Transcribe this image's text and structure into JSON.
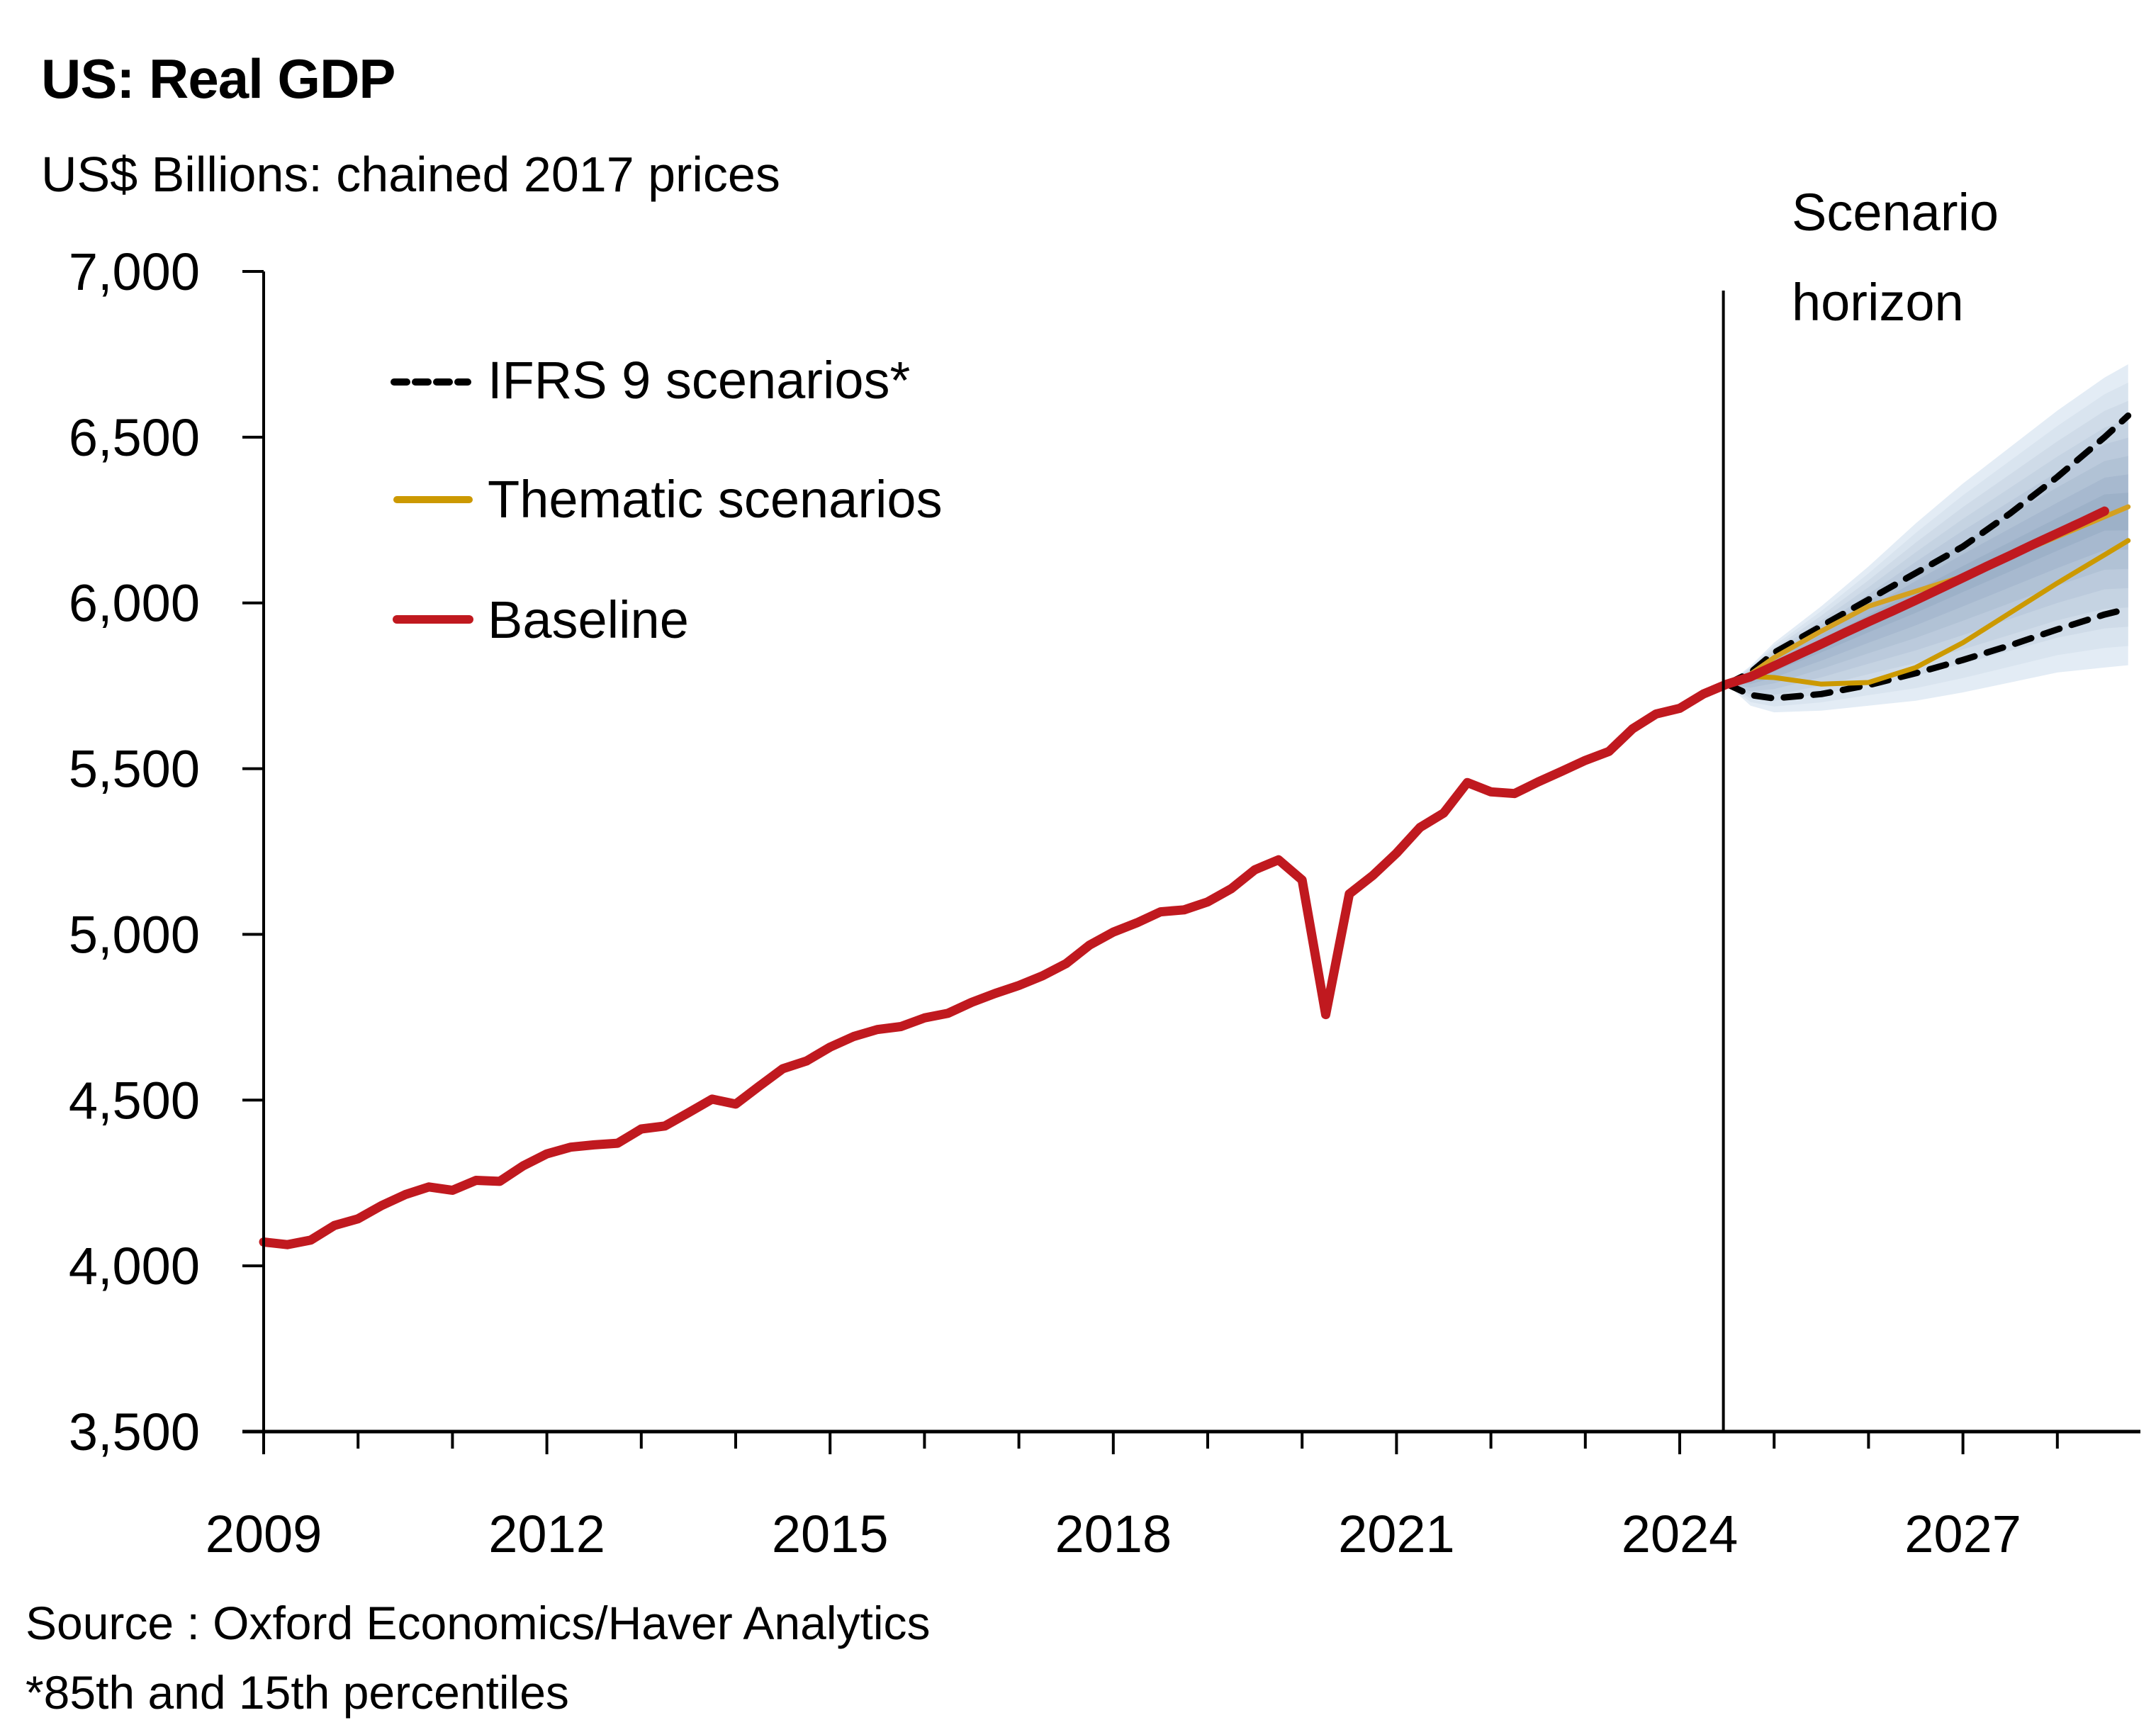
{
  "chart_data": {
    "type": "line",
    "title": "US: Real GDP",
    "subtitle": "US$ Billions: chained 2017 prices",
    "xlabel": "",
    "ylabel": "",
    "ylim": [
      3500,
      7000
    ],
    "xlim": [
      2009.0,
      2028.75
    ],
    "yticks": [
      3500,
      4000,
      4500,
      5000,
      5500,
      6000,
      6500,
      7000
    ],
    "ytick_labels": [
      "3,500",
      "4,000",
      "4,500",
      "5,000",
      "5,500",
      "6,000",
      "6,500",
      "7,000"
    ],
    "xticks_major": [
      2009,
      2012,
      2015,
      2018,
      2021,
      2024,
      2027
    ],
    "xtick_labels": [
      "2009",
      "2012",
      "2015",
      "2018",
      "2021",
      "2024",
      "2027"
    ],
    "xticks_minor_every_years": 1,
    "grid": false,
    "legend_position": "top-left",
    "legend": [
      {
        "label": "IFRS 9 scenarios*",
        "style": "dashed",
        "color": "#000000"
      },
      {
        "label": "Thematic scenarios",
        "style": "solid",
        "color": "#CC9900"
      },
      {
        "label": "Baseline",
        "style": "solid",
        "color": "#C0191F"
      }
    ],
    "annotation": {
      "label_line1": "Scenario",
      "label_line2": "horizon",
      "x": 2024.5
    },
    "colors": {
      "baseline": "#C0191F",
      "thematic": "#CC9900",
      "thematic_upper": "#D4A020",
      "ifrs9": "#000000",
      "fan_outer": "#E3ECF5",
      "fan_inner": "#93A8C2",
      "axis": "#000000"
    },
    "series": [
      {
        "name": "Baseline",
        "x_start": 2009.0,
        "x_step": 0.25,
        "values": [
          4072,
          4064,
          4078,
          4122,
          4142,
          4182,
          4215,
          4238,
          4228,
          4258,
          4255,
          4302,
          4338,
          4358,
          4365,
          4370,
          4413,
          4422,
          4462,
          4503,
          4488,
          4542,
          4595,
          4618,
          4660,
          4692,
          4713,
          4722,
          4748,
          4762,
          4795,
          4822,
          4846,
          4875,
          4912,
          4968,
          5007,
          5035,
          5068,
          5074,
          5098,
          5138,
          5195,
          5225,
          5164,
          4758,
          5122,
          5178,
          5245,
          5323,
          5366,
          5458,
          5430,
          5425,
          5460,
          5492,
          5525,
          5552,
          5620,
          5665,
          5682,
          5725,
          5755,
          5777,
          5810,
          5843,
          5876,
          5910,
          5943,
          5975,
          6008,
          6042,
          6076,
          6110,
          6143,
          6177,
          6210,
          6243,
          6277
        ]
      },
      {
        "name": "IFRS 9 upper (85th percentile)",
        "x": [
          2024.5,
          2024.75,
          2025.0,
          2025.5,
          2026.0,
          2026.5,
          2027.0,
          2027.5,
          2028.0,
          2028.5,
          2028.75
        ],
        "values": [
          5755,
          5790,
          5850,
          5930,
          6010,
          6090,
          6170,
          6270,
          6380,
          6500,
          6565
        ]
      },
      {
        "name": "IFRS 9 lower (15th percentile)",
        "x": [
          2024.5,
          2024.75,
          2025.0,
          2025.5,
          2026.0,
          2026.5,
          2027.0,
          2027.5,
          2028.0,
          2028.5,
          2028.75
        ],
        "values": [
          5755,
          5722,
          5712,
          5725,
          5752,
          5788,
          5828,
          5872,
          5920,
          5965,
          5982
        ]
      },
      {
        "name": "Thematic scenario (upside)",
        "x": [
          2024.5,
          2024.75,
          2025.0,
          2025.5,
          2026.0,
          2026.5,
          2027.0,
          2027.5,
          2028.0,
          2028.5,
          2028.75
        ],
        "values": [
          5755,
          5785,
          5835,
          5915,
          5990,
          6035,
          6080,
          6140,
          6200,
          6260,
          6290
        ]
      },
      {
        "name": "Thematic scenario (downside)",
        "x": [
          2024.5,
          2024.75,
          2025.0,
          2025.5,
          2026.0,
          2026.5,
          2027.0,
          2027.5,
          2028.0,
          2028.5,
          2028.75
        ],
        "values": [
          5755,
          5778,
          5775,
          5755,
          5760,
          5805,
          5880,
          5970,
          6060,
          6145,
          6188
        ]
      }
    ],
    "fan_bands": {
      "x": [
        2024.5,
        2024.75,
        2025.0,
        2025.5,
        2026.0,
        2026.5,
        2027.0,
        2027.5,
        2028.0,
        2028.5,
        2028.75
      ],
      "outer_upper": [
        5755,
        5810,
        5880,
        5990,
        6110,
        6240,
        6360,
        6470,
        6580,
        6680,
        6720
      ],
      "outer_lower": [
        5755,
        5690,
        5670,
        5675,
        5690,
        5705,
        5730,
        5760,
        5790,
        5805,
        5812
      ]
    }
  },
  "footer": {
    "source": "Source : Oxford Economics/Haver Analytics",
    "note": "*85th and 15th percentiles"
  }
}
